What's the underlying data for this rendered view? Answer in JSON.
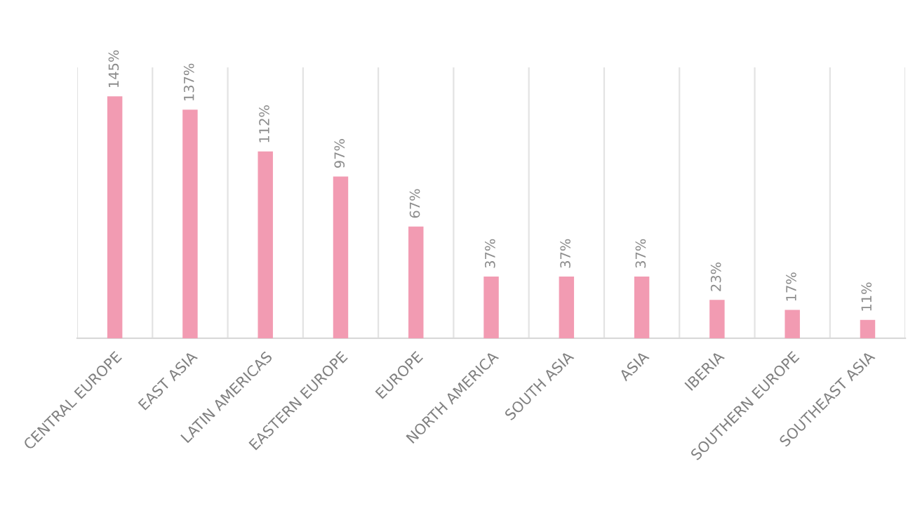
{
  "chart_data": {
    "type": "bar",
    "categories": [
      "CENTRAL EUROPE",
      "EAST ASIA",
      "LATIN AMERICAS",
      "EASTERN EUROPE",
      "EUROPE",
      "NORTH AMERICA",
      "SOUTH ASIA",
      "ASIA",
      "IBERIA",
      "SOUTHERN EUROPE",
      "SOUTHEAST ASIA"
    ],
    "values": [
      145,
      137,
      112,
      97,
      67,
      37,
      37,
      37,
      23,
      17,
      11
    ],
    "value_labels": [
      "145%",
      "137%",
      "112%",
      "97%",
      "67%",
      "37%",
      "37%",
      "37%",
      "23%",
      "17%",
      "11%"
    ],
    "color": "#f29bb2",
    "grid": "x",
    "tick_labels": "x"
  }
}
